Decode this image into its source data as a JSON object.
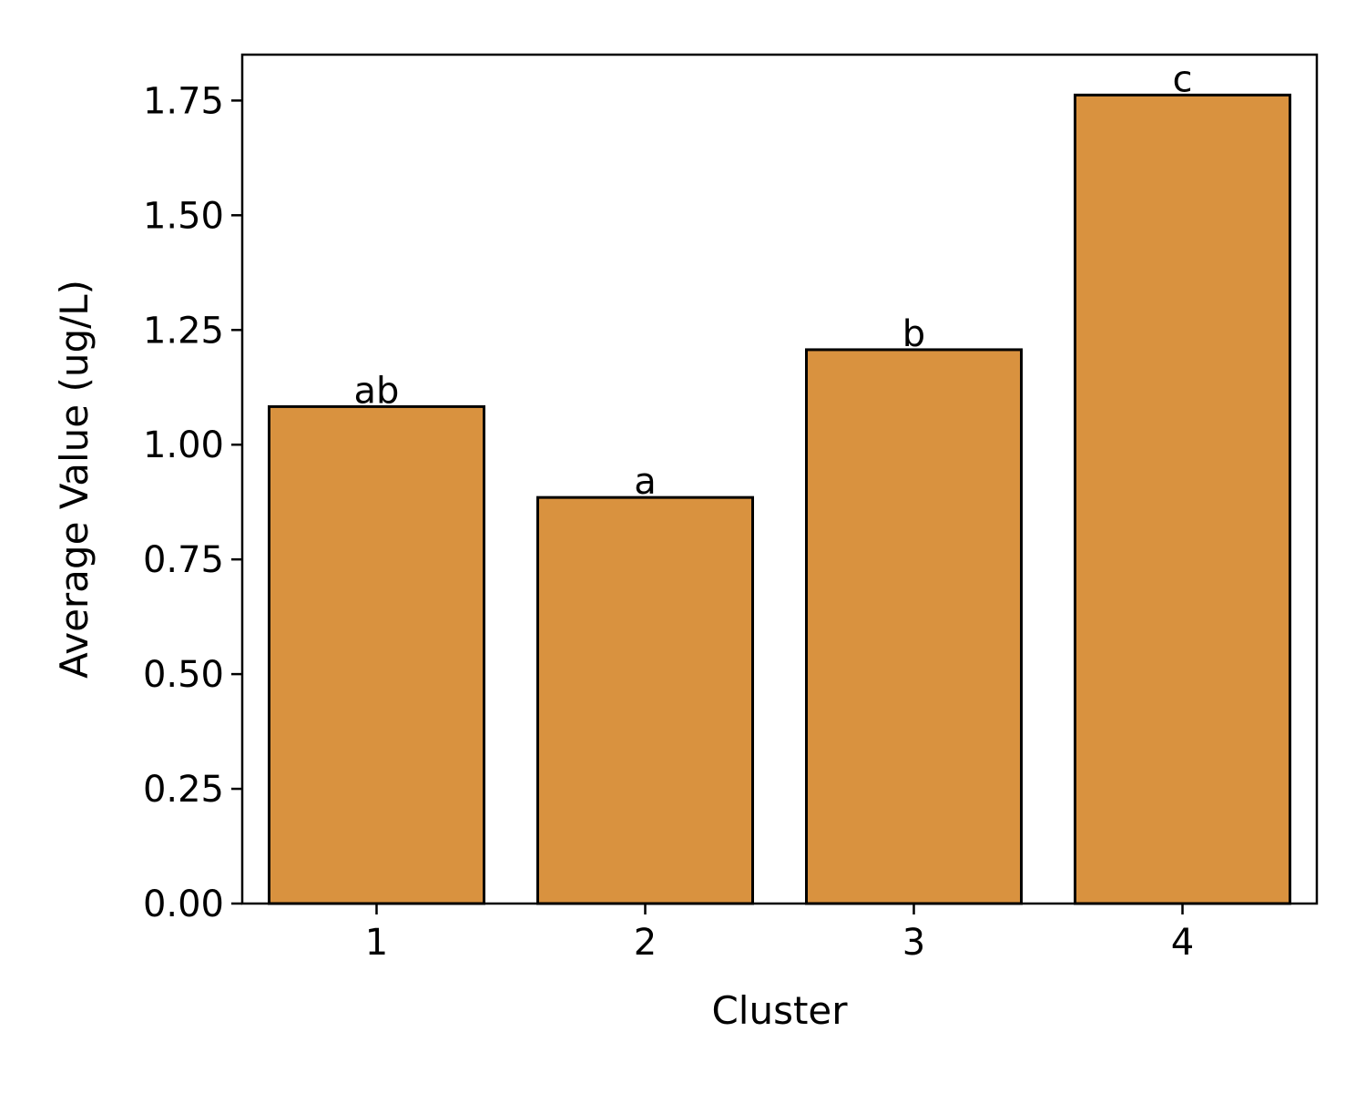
{
  "chart_data": {
    "type": "bar",
    "categories": [
      "1",
      "2",
      "3",
      "4"
    ],
    "values": [
      1.083,
      0.885,
      1.207,
      1.762
    ],
    "bar_labels": [
      "ab",
      "a",
      "b",
      "c"
    ],
    "xlabel": "Cluster",
    "ylabel": "Average Value (ug/L)",
    "ylim": [
      0,
      1.85
    ],
    "yticks": [
      0.0,
      0.25,
      0.5,
      0.75,
      1.0,
      1.25,
      1.5,
      1.75
    ],
    "ytick_labels": [
      "0.00",
      "0.25",
      "0.50",
      "0.75",
      "1.00",
      "1.25",
      "1.50",
      "1.75"
    ],
    "grid": false,
    "legend": "none",
    "bar_color": "#d9923f",
    "edge_color": "#000000"
  }
}
